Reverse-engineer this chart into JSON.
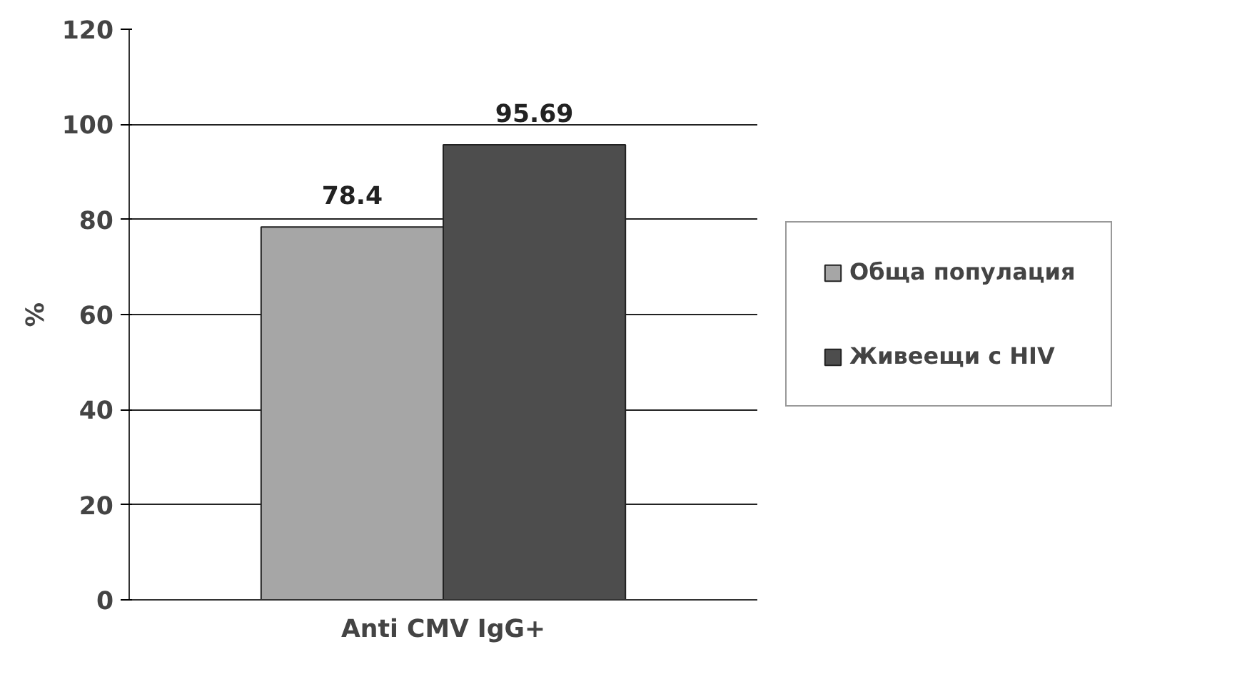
{
  "chart_data": {
    "type": "bar",
    "ylabel": "%",
    "categories": [
      "Anti CMV IgG+"
    ],
    "series": [
      {
        "name": "Обща популация",
        "color": "#a6a6a6",
        "values": [
          78.4
        ]
      },
      {
        "name": "Живеещи с HIV",
        "color": "#4d4d4d",
        "values": [
          95.69
        ]
      }
    ],
    "ylim": [
      0,
      120
    ],
    "yticks": [
      0,
      20,
      40,
      60,
      80,
      100,
      120
    ],
    "grid": "y",
    "legend": "right",
    "data_labels": true
  }
}
